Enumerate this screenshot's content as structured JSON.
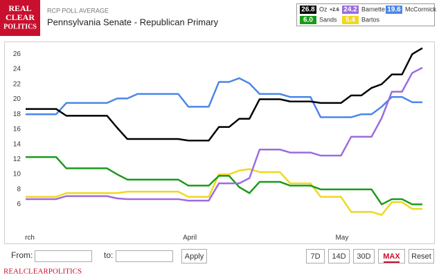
{
  "header": {
    "logo": [
      "REAL",
      "CLEAR",
      "POLITICS"
    ],
    "kicker": "RCP POLL AVERAGE",
    "title": "Pennsylvania Senate - Republican Primary"
  },
  "chart_data": {
    "type": "line",
    "categories": [
      "rch",
      null,
      null,
      null,
      null,
      null,
      null,
      null,
      null,
      null,
      null,
      null,
      null,
      null,
      null,
      null,
      "April",
      null,
      null,
      null,
      null,
      null,
      null,
      null,
      null,
      null,
      null,
      null,
      null,
      null,
      null,
      "May",
      null,
      null,
      null,
      null,
      null,
      null,
      null,
      null
    ],
    "series": [
      {
        "name": "Oz",
        "color": "#000000",
        "legend_value": "26.8",
        "change": "+2.6",
        "values": [
          18.7,
          18.7,
          18.7,
          18.7,
          17.8,
          17.8,
          17.8,
          17.8,
          17.8,
          16.2,
          14.7,
          14.7,
          14.7,
          14.7,
          14.7,
          14.7,
          14.5,
          14.5,
          14.5,
          16.3,
          16.3,
          17.4,
          17.4,
          20,
          20,
          20,
          19.7,
          19.7,
          19.7,
          19.5,
          19.5,
          19.5,
          20.5,
          20.5,
          21.5,
          22,
          23.3,
          23.3,
          26,
          26.8
        ]
      },
      {
        "name": "Barnette",
        "color": "#9b6be0",
        "legend_value": "24.2",
        "values": [
          6.7,
          6.7,
          6.7,
          6.7,
          7.1,
          7.1,
          7.1,
          7.1,
          7.1,
          6.8,
          6.7,
          6.7,
          6.7,
          6.7,
          6.7,
          6.7,
          6.5,
          6.5,
          6.5,
          8.8,
          8.8,
          8.8,
          9.5,
          13.3,
          13.3,
          13.3,
          12.9,
          12.9,
          12.9,
          12.5,
          12.5,
          12.5,
          15,
          15,
          15,
          17.5,
          21,
          21,
          23.5,
          24.2
        ]
      },
      {
        "name": "McCormick",
        "color": "#4a86e8",
        "legend_value": "19.6",
        "values": [
          18,
          18,
          18,
          18,
          19.5,
          19.5,
          19.5,
          19.5,
          19.5,
          20.1,
          20.1,
          20.7,
          20.7,
          20.7,
          20.7,
          20.7,
          19,
          19,
          19,
          22.3,
          22.3,
          22.8,
          22.1,
          20.7,
          20.7,
          20.7,
          20.3,
          20.3,
          20.3,
          17.6,
          17.6,
          17.6,
          17.6,
          18,
          18,
          19,
          20.3,
          20.3,
          19.6,
          19.6
        ]
      },
      {
        "name": "Sands",
        "color": "#1a9a1a",
        "legend_value": "6.0",
        "values": [
          12.3,
          12.3,
          12.3,
          12.3,
          10.8,
          10.8,
          10.8,
          10.8,
          10.8,
          10,
          9.3,
          9.3,
          9.3,
          9.3,
          9.3,
          9.3,
          8.5,
          8.5,
          8.5,
          9.8,
          9.8,
          8.3,
          7.5,
          9,
          9,
          9,
          8.5,
          8.5,
          8.5,
          8,
          8,
          8,
          8,
          8,
          8,
          6,
          6.7,
          6.7,
          6,
          6
        ]
      },
      {
        "name": "Bartos",
        "color": "#f0d820",
        "legend_value": "5.4",
        "values": [
          7,
          7,
          7,
          7,
          7.5,
          7.5,
          7.5,
          7.5,
          7.5,
          7.5,
          7.7,
          7.7,
          7.7,
          7.7,
          7.7,
          7.7,
          7,
          7,
          7,
          10,
          10,
          10.5,
          10.7,
          10.3,
          10.3,
          10.3,
          8.8,
          8.8,
          8.8,
          7,
          7,
          7,
          5,
          5,
          5,
          4.6,
          6.3,
          6.3,
          5.4,
          5.4
        ]
      }
    ],
    "ylim": [
      2,
      27.5
    ],
    "yticks": [
      6,
      8,
      10,
      12,
      14,
      16,
      18,
      20,
      22,
      24,
      26
    ]
  },
  "controls": {
    "from": "From:",
    "to": "to:",
    "apply": "Apply",
    "ranges": [
      "7D",
      "14D",
      "30D",
      "MAX",
      "Reset"
    ]
  },
  "footer": "REALCLEARPOLITICS"
}
